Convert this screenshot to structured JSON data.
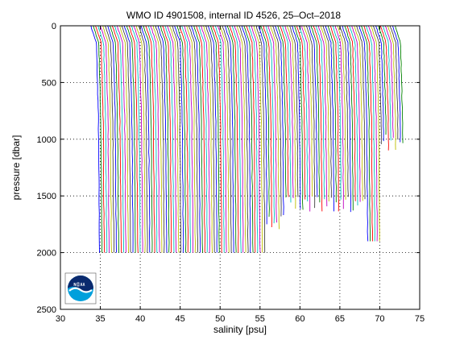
{
  "chart_data": {
    "type": "line",
    "title": "WMO ID 4901508, internal ID 4526, 25–Oct–2018",
    "xlabel": "salinity [psu]",
    "ylabel": "pressure [dbar]",
    "xlim": [
      30,
      75
    ],
    "ylim": [
      0,
      2500
    ],
    "y_reversed": true,
    "xticks": [
      30,
      35,
      40,
      45,
      50,
      55,
      60,
      65,
      70,
      75
    ],
    "yticks": [
      0,
      500,
      1000,
      1500,
      2000,
      2500
    ],
    "grid": "dotted",
    "profile_count": 128,
    "profile_offset_psu": 0.3,
    "first_profile_surface_salinity": 33.8,
    "first_profile_deep_salinity": 34.9,
    "series_colors": [
      "#0000ff",
      "#008000",
      "#ff0000",
      "#00bfbf",
      "#bf00bf",
      "#bfbf00",
      "#404040"
    ],
    "logo": "noaa-logo"
  }
}
